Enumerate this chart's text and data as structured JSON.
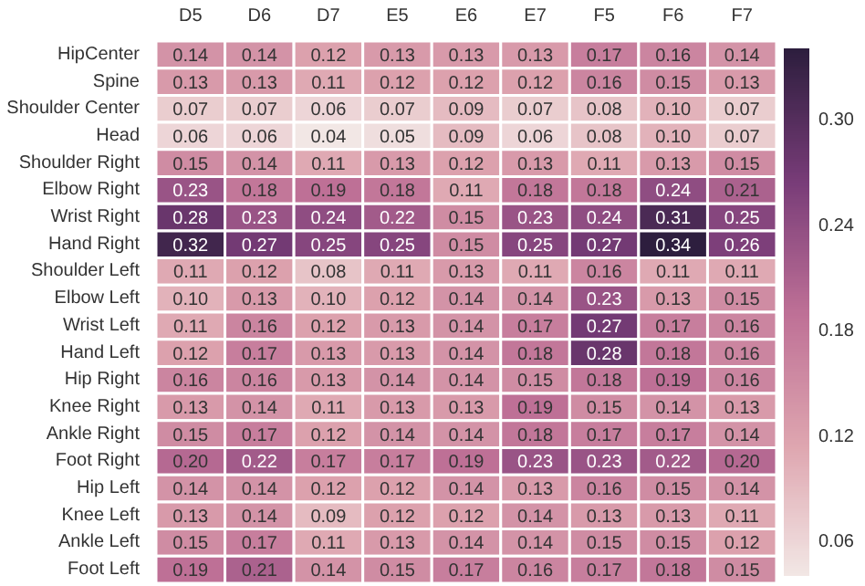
{
  "chart_data": {
    "type": "heatmap",
    "categories": [
      "D5",
      "D6",
      "D7",
      "E5",
      "E6",
      "E7",
      "F5",
      "F6",
      "F7"
    ],
    "y_categories": [
      "HipCenter",
      "Spine",
      "Shoulder Center",
      "Head",
      "Shoulder Right",
      "Elbow Right",
      "Wrist Right",
      "Hand Right",
      "Shoulder Left",
      "Elbow Left",
      "Wrist Left",
      "Hand Left",
      "Hip Right",
      "Knee Right",
      "Ankle Right",
      "Foot Right",
      "Hip Left",
      "Knee Left",
      "Ankle Left",
      "Foot Left"
    ],
    "cells": [
      [
        0.14,
        0.14,
        0.12,
        0.13,
        0.13,
        0.13,
        0.17,
        0.16,
        0.14
      ],
      [
        0.13,
        0.13,
        0.11,
        0.12,
        0.12,
        0.12,
        0.16,
        0.15,
        0.13
      ],
      [
        0.07,
        0.07,
        0.06,
        0.07,
        0.09,
        0.07,
        0.08,
        0.1,
        0.07
      ],
      [
        0.06,
        0.06,
        0.04,
        0.05,
        0.09,
        0.06,
        0.08,
        0.1,
        0.07
      ],
      [
        0.15,
        0.14,
        0.11,
        0.13,
        0.12,
        0.13,
        0.11,
        0.13,
        0.15
      ],
      [
        0.23,
        0.18,
        0.19,
        0.18,
        0.11,
        0.18,
        0.18,
        0.24,
        0.21
      ],
      [
        0.28,
        0.23,
        0.24,
        0.22,
        0.15,
        0.23,
        0.24,
        0.31,
        0.25
      ],
      [
        0.32,
        0.27,
        0.25,
        0.25,
        0.15,
        0.25,
        0.27,
        0.34,
        0.26
      ],
      [
        0.11,
        0.12,
        0.08,
        0.11,
        0.13,
        0.11,
        0.16,
        0.11,
        0.11
      ],
      [
        0.1,
        0.13,
        0.1,
        0.12,
        0.14,
        0.14,
        0.23,
        0.13,
        0.15
      ],
      [
        0.11,
        0.16,
        0.12,
        0.13,
        0.14,
        0.17,
        0.27,
        0.17,
        0.16
      ],
      [
        0.12,
        0.17,
        0.13,
        0.13,
        0.14,
        0.18,
        0.28,
        0.18,
        0.16
      ],
      [
        0.16,
        0.16,
        0.13,
        0.14,
        0.14,
        0.15,
        0.18,
        0.19,
        0.16
      ],
      [
        0.13,
        0.14,
        0.11,
        0.13,
        0.13,
        0.19,
        0.15,
        0.14,
        0.13
      ],
      [
        0.15,
        0.17,
        0.12,
        0.14,
        0.14,
        0.18,
        0.17,
        0.17,
        0.14
      ],
      [
        0.2,
        0.22,
        0.17,
        0.17,
        0.19,
        0.23,
        0.23,
        0.22,
        0.2
      ],
      [
        0.14,
        0.14,
        0.12,
        0.12,
        0.14,
        0.13,
        0.16,
        0.15,
        0.14
      ],
      [
        0.13,
        0.14,
        0.09,
        0.12,
        0.12,
        0.14,
        0.13,
        0.13,
        0.11
      ],
      [
        0.15,
        0.17,
        0.11,
        0.13,
        0.14,
        0.14,
        0.15,
        0.15,
        0.12
      ],
      [
        0.19,
        0.21,
        0.14,
        0.15,
        0.17,
        0.16,
        0.17,
        0.18,
        0.15
      ]
    ],
    "cell_labels": [
      [
        "0.14",
        "0.14",
        "0.12",
        "0.13",
        "0.13",
        "0.13",
        "0.17",
        "0.16",
        "0.14"
      ],
      [
        "0.13",
        "0.13",
        "0.11",
        "0.12",
        "0.12",
        "0.12",
        "0.16",
        "0.15",
        "0.13"
      ],
      [
        "0.07",
        "0.07",
        "0.06",
        "0.07",
        "0.09",
        "0.07",
        "0.08",
        "0.10",
        "0.07"
      ],
      [
        "0.06",
        "0.06",
        "0.04",
        "0.05",
        "0.09",
        "0.06",
        "0.08",
        "0.10",
        "0.07"
      ],
      [
        "0.15",
        "0.14",
        "0.11",
        "0.13",
        "0.12",
        "0.13",
        "0.11",
        "0.13",
        "0.15"
      ],
      [
        "0.23",
        "0.18",
        "0.19",
        "0.18",
        "0.11",
        "0.18",
        "0.18",
        "0.24",
        "0.21"
      ],
      [
        "0.28",
        "0.23",
        "0.24",
        "0.22",
        "0.15",
        "0.23",
        "0.24",
        "0.31",
        "0.25"
      ],
      [
        "0.32",
        "0.27",
        "0.25",
        "0.25",
        "0.15",
        "0.25",
        "0.27",
        "0.34",
        "0.26"
      ],
      [
        "0.11",
        "0.12",
        "0.08",
        "0.11",
        "0.13",
        "0.11",
        "0.16",
        "0.11",
        "0.11"
      ],
      [
        "0.10",
        "0.13",
        "0.10",
        "0.12",
        "0.14",
        "0.14",
        "0.23",
        "0.13",
        "0.15"
      ],
      [
        "0.11",
        "0.16",
        "0.12",
        "0.13",
        "0.14",
        "0.17",
        "0.27",
        "0.17",
        "0.16"
      ],
      [
        "0.12",
        "0.17",
        "0.13",
        "0.13",
        "0.14",
        "0.18",
        "0.28",
        "0.18",
        "0.16"
      ],
      [
        "0.16",
        "0.16",
        "0.13",
        "0.14",
        "0.14",
        "0.15",
        "0.18",
        "0.19",
        "0.16"
      ],
      [
        "0.13",
        "0.14",
        "0.11",
        "0.13",
        "0.13",
        "0.19",
        "0.15",
        "0.14",
        "0.13"
      ],
      [
        "0.15",
        "0.17",
        "0.12",
        "0.14",
        "0.14",
        "0.18",
        "0.17",
        "0.17",
        "0.14"
      ],
      [
        "0.20",
        "0.22",
        "0.17",
        "0.17",
        "0.19",
        "0.23",
        "0.23",
        "0.22",
        "0.20"
      ],
      [
        "0.14",
        "0.14",
        "0.12",
        "0.12",
        "0.14",
        "0.13",
        "0.16",
        "0.15",
        "0.14"
      ],
      [
        "0.13",
        "0.14",
        "0.09",
        "0.12",
        "0.12",
        "0.14",
        "0.13",
        "0.13",
        "0.11"
      ],
      [
        "0.15",
        "0.17",
        "0.11",
        "0.13",
        "0.14",
        "0.14",
        "0.15",
        "0.15",
        "0.12"
      ],
      [
        "0.19",
        "0.21",
        "0.14",
        "0.15",
        "0.17",
        "0.16",
        "0.17",
        "0.18",
        "0.15"
      ]
    ],
    "clim": [
      0.04,
      0.34
    ],
    "cticks": [
      0.06,
      0.12,
      0.18,
      0.24,
      {
        "value": 0.3,
        "label": "0.30"
      }
    ]
  }
}
